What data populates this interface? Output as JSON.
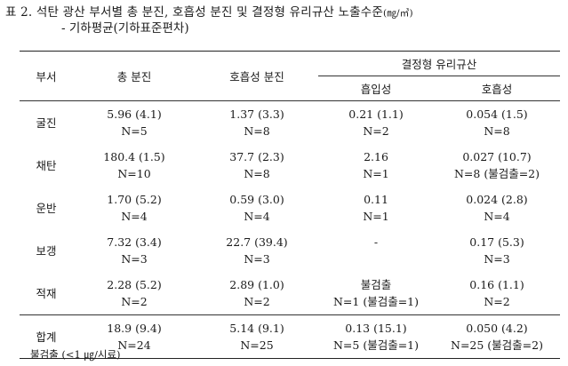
{
  "title": {
    "prefix": "표 2.  석탄 광산 부서별 총 분진, 호흡성 분진 및 결정형 유리규산 노출수준",
    "unit": "(㎎/㎥)",
    "subtitle": "- 기하평균(기하표준편차)"
  },
  "table": {
    "headers": {
      "dept": "부서",
      "total_dust": "총 분진",
      "resp_dust": "호흡성 분진",
      "crystalline_silica": "결정형 유리규산",
      "inhalable": "흡입성",
      "respirable": "호흡성"
    },
    "rows": [
      {
        "dept": "굴진",
        "total_v": "5.96 (4.1)",
        "total_n": "N=5",
        "resp_v": "1.37 (3.3)",
        "resp_n": "N=8",
        "inh_v": "0.21 (1.1)",
        "inh_n": "N=2",
        "rsil_v": "0.054 (1.5)",
        "rsil_n": "N=8"
      },
      {
        "dept": "채탄",
        "total_v": "180.4 (1.5)",
        "total_n": "N=10",
        "resp_v": "37.7 (2.3)",
        "resp_n": "N=8",
        "inh_v": "2.16",
        "inh_n": "N=1",
        "rsil_v": "0.027 (10.7)",
        "rsil_n": "N=8 (불검출=2)"
      },
      {
        "dept": "운반",
        "total_v": "1.70 (5.2)",
        "total_n": "N=4",
        "resp_v": "0.59 (3.0)",
        "resp_n": "N=4",
        "inh_v": "0.11",
        "inh_n": "N=1",
        "rsil_v": "0.024 (2.8)",
        "rsil_n": "N=4"
      },
      {
        "dept": "보갱",
        "total_v": "7.32 (3.4)",
        "total_n": "N=3",
        "resp_v": "22.7 (39.4)",
        "resp_n": "N=3",
        "inh_v": "-",
        "inh_n": "",
        "rsil_v": "0.17 (5.3)",
        "rsil_n": "N=3"
      },
      {
        "dept": "적재",
        "total_v": "2.28 (5.2)",
        "total_n": "N=2",
        "resp_v": "2.89 (1.0)",
        "resp_n": "N=2",
        "inh_v": "불검출",
        "inh_n": "N=1 (불검출=1)",
        "rsil_v": "0.16 (1.1)",
        "rsil_n": "N=2"
      }
    ],
    "total": {
      "dept": "합계",
      "total_v": "18.9 (9.4)",
      "total_n": "N=24",
      "resp_v": "5.14 (9.1)",
      "resp_n": "N=25",
      "inh_v": "0.13 (15.1)",
      "inh_n": "N=5 (불검출=1)",
      "rsil_v": "0.050 (4.2)",
      "rsil_n": "N=25 (불검출=2)"
    }
  },
  "footnote": "불검출 (<1 ㎍/시료)"
}
